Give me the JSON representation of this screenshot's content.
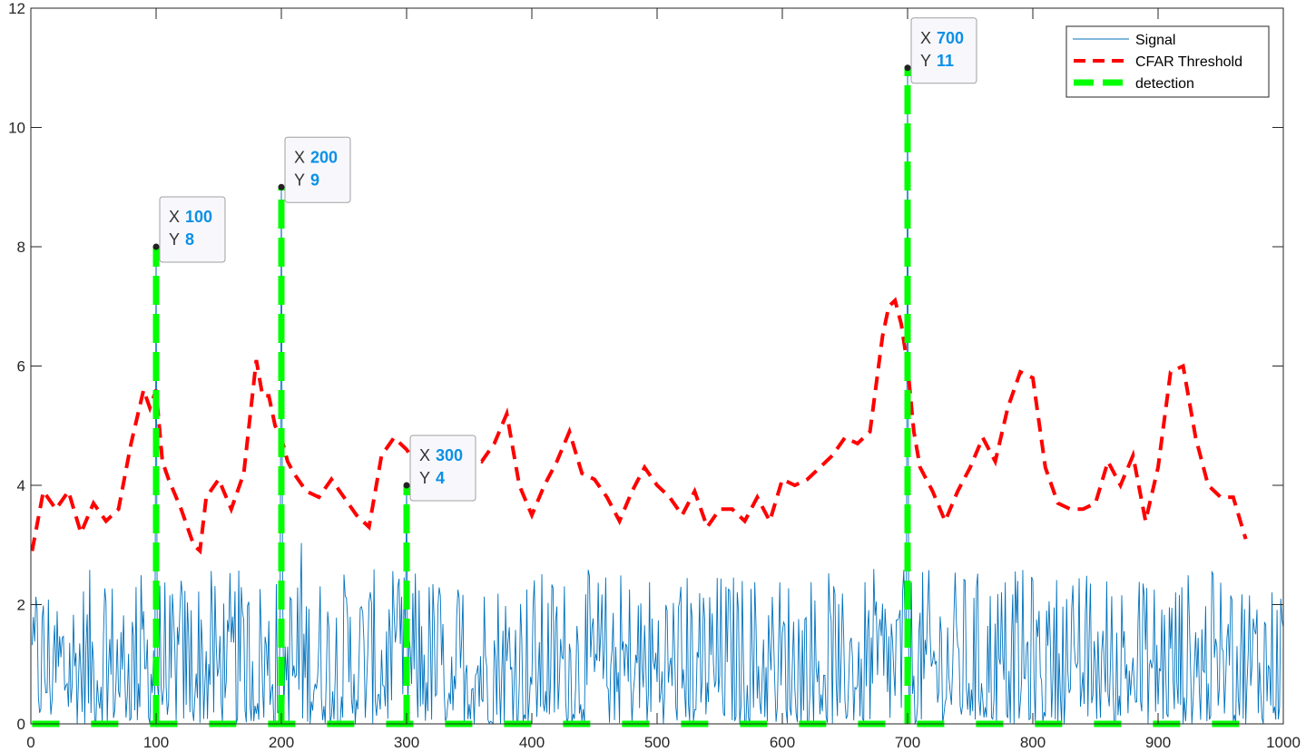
{
  "chart_data": {
    "type": "line",
    "xlim": [
      0,
      1000
    ],
    "ylim": [
      0,
      12
    ],
    "x_ticks": [
      0,
      100,
      200,
      300,
      400,
      500,
      600,
      700,
      800,
      900,
      1000
    ],
    "y_ticks": [
      0,
      2,
      4,
      6,
      8,
      10,
      12
    ],
    "grid": false,
    "legend_position": "top-right",
    "colors": {
      "signal": "#0072bd",
      "threshold": "#ff0000",
      "detection": "#00ff00",
      "datatip_value": "#0a90e6"
    },
    "series": [
      {
        "name": "Signal",
        "style": "solid-thin",
        "n_points": 1000,
        "baseline": "noise 0-3",
        "peaks": [
          {
            "x": 100,
            "y": 8
          },
          {
            "x": 200,
            "y": 9
          },
          {
            "x": 300,
            "y": 4
          },
          {
            "x": 700,
            "y": 11
          }
        ]
      },
      {
        "name": "CFAR Threshold",
        "style": "dashed-thick",
        "x": [
          1,
          10,
          20,
          30,
          40,
          50,
          60,
          70,
          80,
          90,
          95,
          100,
          105,
          110,
          120,
          130,
          135,
          140,
          150,
          160,
          170,
          180,
          185,
          190,
          195,
          200,
          205,
          210,
          220,
          230,
          240,
          250,
          260,
          270,
          280,
          290,
          300,
          310,
          320,
          330,
          340,
          350,
          360,
          370,
          380,
          390,
          400,
          410,
          420,
          430,
          440,
          450,
          460,
          470,
          480,
          490,
          500,
          510,
          520,
          530,
          540,
          550,
          560,
          570,
          580,
          590,
          600,
          610,
          620,
          630,
          640,
          650,
          660,
          670,
          680,
          685,
          690,
          695,
          700,
          705,
          710,
          720,
          730,
          740,
          750,
          760,
          770,
          780,
          790,
          800,
          810,
          820,
          830,
          840,
          850,
          860,
          870,
          880,
          890,
          900,
          910,
          920,
          930,
          940,
          950,
          960,
          970
        ],
        "values": [
          2.9,
          3.9,
          3.6,
          3.9,
          3.2,
          3.7,
          3.4,
          3.6,
          4.7,
          5.6,
          5.3,
          5.6,
          4.4,
          4.1,
          3.6,
          3.0,
          2.9,
          3.8,
          4.1,
          3.6,
          4.2,
          6.1,
          5.5,
          5.5,
          5.0,
          4.8,
          4.4,
          4.2,
          3.9,
          3.8,
          4.1,
          3.8,
          3.5,
          3.3,
          4.5,
          4.8,
          4.6,
          4.3,
          4.2,
          4.3,
          4.2,
          4.5,
          4.4,
          4.7,
          5.2,
          4.0,
          3.5,
          4.0,
          4.4,
          4.9,
          4.2,
          4.1,
          3.8,
          3.4,
          3.9,
          4.3,
          4.0,
          3.8,
          3.5,
          3.9,
          3.3,
          3.6,
          3.6,
          3.4,
          3.8,
          3.4,
          4.1,
          4.0,
          4.1,
          4.3,
          4.5,
          4.8,
          4.7,
          4.9,
          6.5,
          7.0,
          7.1,
          6.7,
          6.0,
          4.9,
          4.3,
          3.9,
          3.4,
          3.9,
          4.3,
          4.8,
          4.4,
          5.3,
          5.9,
          5.8,
          4.3,
          3.7,
          3.6,
          3.6,
          3.7,
          4.4,
          4.0,
          4.5,
          3.4,
          4.3,
          5.9,
          6.0,
          4.8,
          4.0,
          3.8,
          3.8,
          3.1
        ]
      },
      {
        "name": "detection",
        "style": "dashed-thick",
        "pulses": [
          {
            "x": 100,
            "y": 8
          },
          {
            "x": 200,
            "y": 9
          },
          {
            "x": 300,
            "y": 4
          },
          {
            "x": 700,
            "y": 11
          }
        ],
        "baseline_y": 0
      }
    ],
    "datatips": [
      {
        "x": "100",
        "y": "8"
      },
      {
        "x": "200",
        "y": "9"
      },
      {
        "x": "300",
        "y": "4"
      },
      {
        "x": "700",
        "y": "11"
      }
    ],
    "datatip_key_x": "X",
    "datatip_key_y": "Y"
  }
}
